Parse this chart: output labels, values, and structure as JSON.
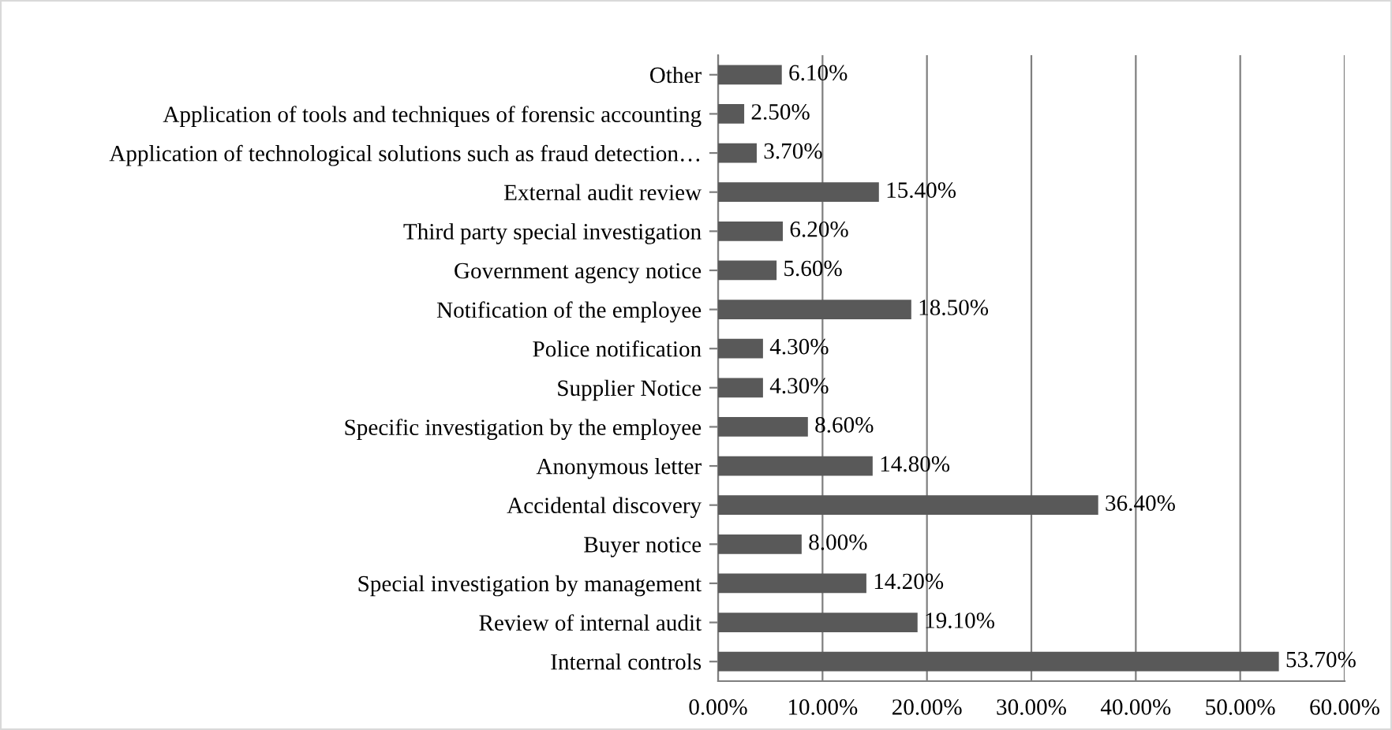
{
  "chart_data": {
    "type": "bar",
    "orientation": "horizontal",
    "categories": [
      "Other",
      "Application of tools and techniques of forensic accounting",
      "Application of technological solutions such as fraud detection…",
      "External audit review",
      "Third party special investigation",
      "Government agency notice",
      "Notification of the employee",
      "Police notification",
      "Supplier Notice",
      "Specific investigation by the employee",
      "Anonymous letter",
      "Accidental discovery",
      "Buyer notice",
      "Special investigation by management",
      "Review of internal audit",
      "Internal controls"
    ],
    "values": [
      6.1,
      2.5,
      3.7,
      15.4,
      6.2,
      5.6,
      18.5,
      4.3,
      4.3,
      8.6,
      14.8,
      36.4,
      8.0,
      14.2,
      19.1,
      53.7
    ],
    "value_labels": [
      "6.10%",
      "2.50%",
      "3.70%",
      "15.40%",
      "6.20%",
      "5.60%",
      "18.50%",
      "4.30%",
      "4.30%",
      "8.60%",
      "14.80%",
      "36.40%",
      "8.00%",
      "14.20%",
      "19.10%",
      "53.70%"
    ],
    "color": "#595959",
    "xlim": [
      0,
      60
    ],
    "xticks": [
      {
        "value": 0,
        "label": "0.00%"
      },
      {
        "value": 10,
        "label": "10.00%"
      },
      {
        "value": 20,
        "label": "20.00%"
      },
      {
        "value": 30,
        "label": "30.00%"
      },
      {
        "value": 40,
        "label": "40.00%"
      },
      {
        "value": 50,
        "label": "50.00%"
      },
      {
        "value": 60,
        "label": "60.00%"
      }
    ],
    "grid": "x",
    "legend": false
  }
}
